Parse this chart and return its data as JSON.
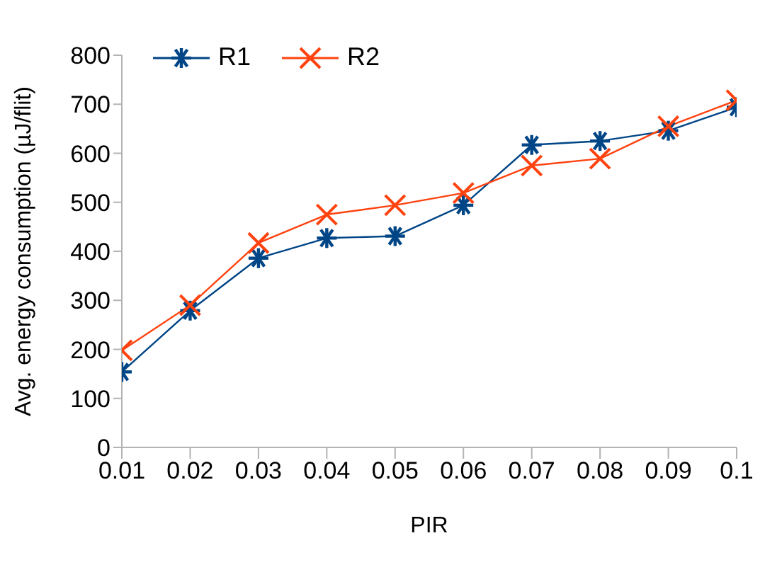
{
  "chart_data": {
    "type": "line",
    "xlabel": "PIR",
    "ylabel": "Avg. energy consumption (µJ/flit)",
    "x": [
      0.01,
      0.02,
      0.03,
      0.04,
      0.05,
      0.06,
      0.07,
      0.08,
      0.09,
      0.1
    ],
    "xlim": [
      0.01,
      0.1
    ],
    "xticks": [
      0.01,
      0.02,
      0.03,
      0.04,
      0.05,
      0.06,
      0.07,
      0.08,
      0.09,
      0.1
    ],
    "ylim": [
      0,
      800
    ],
    "yticks": [
      0,
      100,
      200,
      300,
      400,
      500,
      600,
      700,
      800
    ],
    "legend": "top left",
    "marker": "cross",
    "series": [
      {
        "name": "R1",
        "color": "#004586",
        "values": [
          154,
          279,
          386,
          427,
          431,
          494,
          617,
          625,
          646,
          694
        ]
      },
      {
        "name": "R2",
        "color": "#ff420e",
        "values": [
          198,
          290,
          417,
          475,
          494,
          519,
          575,
          589,
          655,
          708
        ]
      }
    ]
  }
}
